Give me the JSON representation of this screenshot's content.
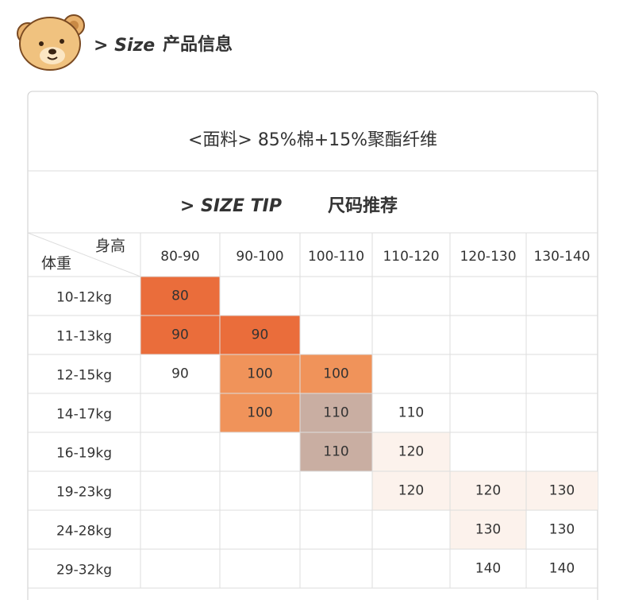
{
  "header": {
    "title": "> Size",
    "subtitle": "产品信息"
  },
  "fabric": "<面料> 85%棉+15%聚酯纤维",
  "tip": {
    "title": "> SIZE TIP",
    "subtitle": "尺码推荐"
  },
  "table": {
    "corner": {
      "top": "身高",
      "bottom": "体重"
    },
    "columns": [
      "80-90",
      "90-100",
      "100-110",
      "110-120",
      "120-130",
      "130-140"
    ],
    "row_labels": [
      "10-12kg",
      "11-13kg",
      "12-15kg",
      "14-17kg",
      "16-19kg",
      "19-23kg",
      "24-28kg",
      "29-32kg"
    ],
    "rows": [
      [
        "80",
        null,
        null,
        null,
        null,
        null
      ],
      [
        "90",
        "90",
        null,
        null,
        null,
        null
      ],
      [
        "90",
        "100",
        "100",
        null,
        null,
        null
      ],
      [
        null,
        "100",
        "110",
        "110",
        null,
        null
      ],
      [
        null,
        null,
        "110",
        "120",
        null,
        null
      ],
      [
        null,
        null,
        null,
        "120",
        "120",
        "130"
      ],
      [
        null,
        null,
        null,
        null,
        "130",
        "130"
      ],
      [
        null,
        null,
        null,
        null,
        "140",
        "140"
      ]
    ],
    "cell_colors": [
      [
        "#ea6d3b",
        null,
        null,
        null,
        null,
        null
      ],
      [
        "#ea6d3b",
        "#ea6d3b",
        null,
        null,
        null,
        null
      ],
      [
        null,
        "#f0935a",
        "#f0935a",
        null,
        null,
        null
      ],
      [
        null,
        "#f0935a",
        "#c9aea2",
        null,
        null,
        null
      ],
      [
        null,
        null,
        "#c9aea2",
        "#fcf2ec",
        null,
        null
      ],
      [
        null,
        null,
        null,
        "#fcf2ec",
        "#fcf2ec",
        "#fcf2ec"
      ],
      [
        null,
        null,
        null,
        null,
        "#fcf2ec",
        null
      ],
      [
        null,
        null,
        null,
        null,
        null,
        null
      ]
    ]
  }
}
